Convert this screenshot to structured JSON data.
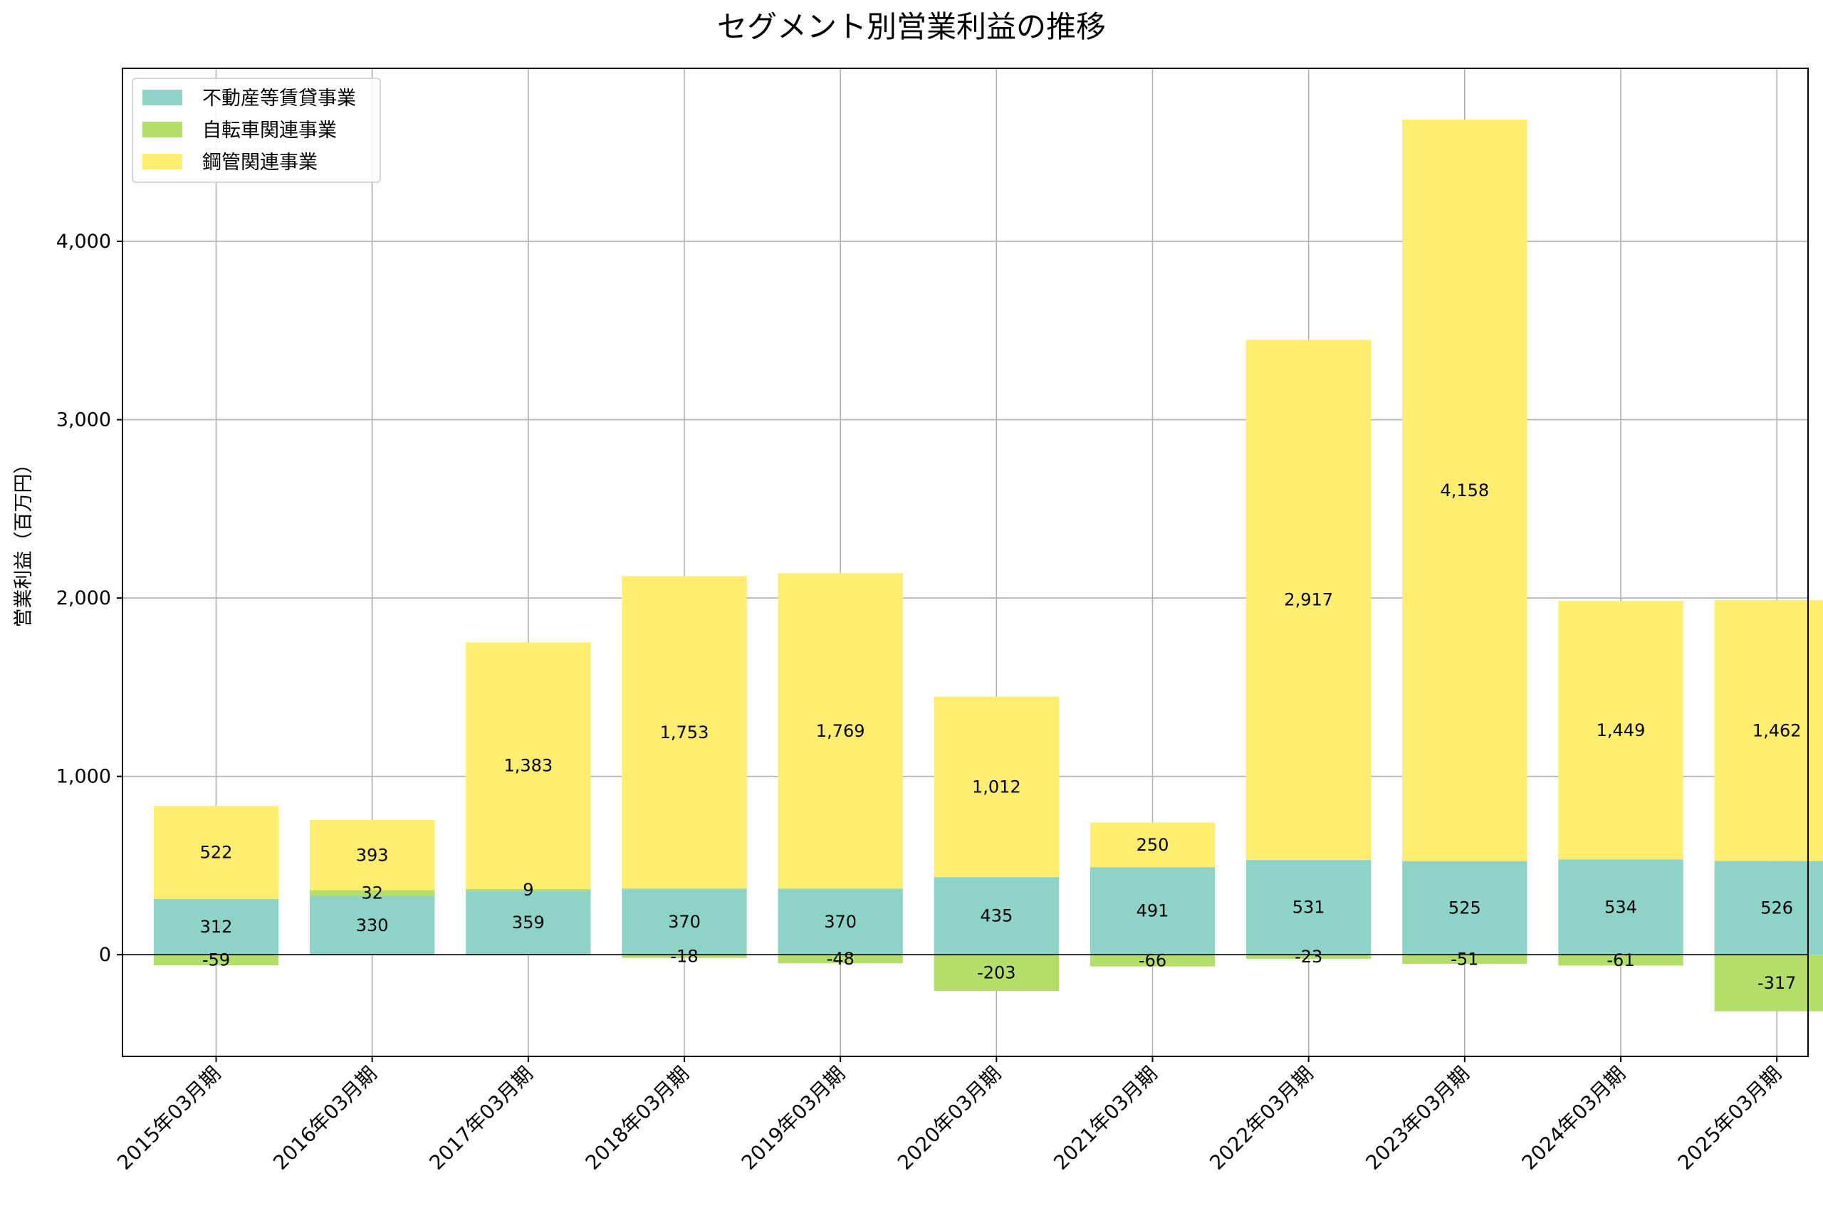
{
  "chart_data": {
    "type": "bar",
    "stacked": true,
    "title": "セグメント別営業利益の推移",
    "xlabel": "",
    "ylabel": "営業利益（百万円）",
    "ylim": [
      -570,
      4970
    ],
    "yticks": [
      0,
      1000,
      2000,
      3000,
      4000
    ],
    "ytick_labels": [
      "0",
      "1,000",
      "2,000",
      "3,000",
      "4,000"
    ],
    "grid": true,
    "legend_position": "top-left",
    "categories": [
      "2015年03月期",
      "2016年03月期",
      "2017年03月期",
      "2018年03月期",
      "2019年03月期",
      "2020年03月期",
      "2021年03月期",
      "2022年03月期",
      "2023年03月期",
      "2024年03月期",
      "2025年03月期"
    ],
    "series": [
      {
        "name": "不動産等賃貸事業",
        "color": "#8dd3c7",
        "values": [
          312,
          330,
          359,
          370,
          370,
          435,
          491,
          531,
          525,
          534,
          526
        ],
        "labels": [
          "312",
          "330",
          "359",
          "370",
          "370",
          "435",
          "491",
          "531",
          "525",
          "534",
          "526"
        ]
      },
      {
        "name": "自転車関連事業",
        "color": "#b3de69",
        "values": [
          -59,
          32,
          9,
          -18,
          -48,
          -203,
          -66,
          -23,
          -51,
          -61,
          -317
        ],
        "labels": [
          "-59",
          "32",
          "9",
          "-18",
          "-48",
          "-203",
          "-66",
          "-23",
          "-51",
          "-61",
          "-317"
        ]
      },
      {
        "name": "鋼管関連事業",
        "color": "#ffed6f",
        "values": [
          522,
          393,
          1383,
          1753,
          1769,
          1012,
          250,
          2917,
          4158,
          1449,
          1462
        ],
        "labels": [
          "522",
          "393",
          "1,383",
          "1,753",
          "1,769",
          "1,012",
          "250",
          "2,917",
          "4,158",
          "1,449",
          "1,462"
        ]
      }
    ]
  }
}
